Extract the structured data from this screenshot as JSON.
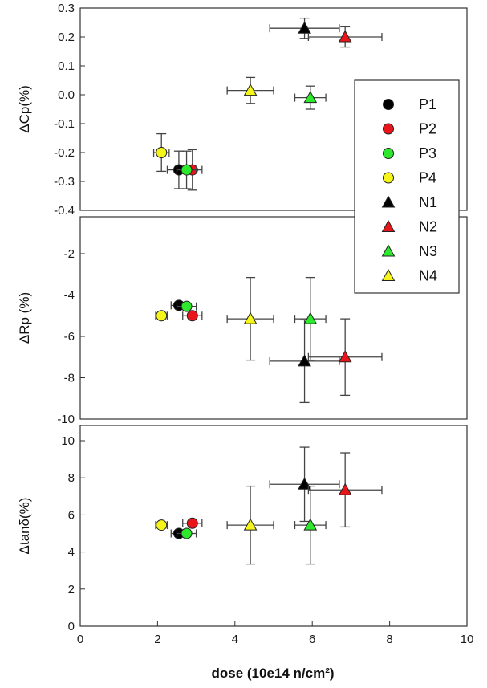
{
  "chart_data": {
    "type": "scatter",
    "xlabel": "dose (10e14 n/cm²)",
    "xlim": [
      0,
      10
    ],
    "xticks": [
      "0",
      "2",
      "4",
      "6",
      "8",
      "10"
    ],
    "legend": {
      "placement": "right",
      "entries": [
        {
          "name": "P1",
          "marker": "circle",
          "color": "#000000"
        },
        {
          "name": "P2",
          "marker": "circle",
          "color": "#e8151b"
        },
        {
          "name": "P3",
          "marker": "circle",
          "color": "#2ee82e"
        },
        {
          "name": "P4",
          "marker": "circle",
          "color": "#f5f51a"
        },
        {
          "name": "N1",
          "marker": "triangle",
          "color": "#000000"
        },
        {
          "name": "N2",
          "marker": "triangle",
          "color": "#e8151b"
        },
        {
          "name": "N3",
          "marker": "triangle",
          "color": "#2ee82e"
        },
        {
          "name": "N4",
          "marker": "triangle",
          "color": "#f5f51a"
        }
      ]
    },
    "panels": [
      {
        "ylabel": "ΔCp(%)",
        "ylim": [
          -0.4,
          0.3
        ],
        "yticks": [
          "0.3",
          "0.2",
          "0.1",
          "0.0",
          "-0.1",
          "-0.2",
          "-0.3",
          "-0.4"
        ],
        "points": [
          {
            "name": "P1",
            "x": 2.55,
            "y": -0.26,
            "xerr": 0.3,
            "yerr": 0.065
          },
          {
            "name": "P2",
            "x": 2.9,
            "y": -0.26,
            "xerr": 0.25,
            "yerr": 0.07
          },
          {
            "name": "P3",
            "x": 2.75,
            "y": -0.26,
            "xerr": 0.25,
            "yerr": 0.065
          },
          {
            "name": "P4",
            "x": 2.1,
            "y": -0.2,
            "xerr": 0.2,
            "yerr": 0.065
          },
          {
            "name": "N1",
            "x": 5.8,
            "y": 0.23,
            "xerr": 0.9,
            "yerr": 0.035
          },
          {
            "name": "N2",
            "x": 6.85,
            "y": 0.2,
            "xerr": 0.95,
            "yerr": 0.035
          },
          {
            "name": "N3",
            "x": 5.95,
            "y": -0.01,
            "xerr": 0.4,
            "yerr": 0.04
          },
          {
            "name": "N4",
            "x": 4.4,
            "y": 0.015,
            "xerr": 0.6,
            "yerr": 0.045
          }
        ]
      },
      {
        "ylabel": "ΔRp (%)",
        "ylim": [
          -10,
          0
        ],
        "yticks": [
          "-2",
          "-4",
          "-6",
          "-8",
          "-10"
        ],
        "points": [
          {
            "name": "P1",
            "x": 2.55,
            "y": -4.5,
            "xerr": 0.2,
            "yerr": 0
          },
          {
            "name": "P2",
            "x": 2.9,
            "y": -5.0,
            "xerr": 0.25,
            "yerr": 0
          },
          {
            "name": "P3",
            "x": 2.75,
            "y": -4.55,
            "xerr": 0.25,
            "yerr": 0
          },
          {
            "name": "P4",
            "x": 2.1,
            "y": -5.0,
            "xerr": 0.15,
            "yerr": 0
          },
          {
            "name": "N1",
            "x": 5.8,
            "y": -7.2,
            "xerr": 0.9,
            "yerr": 2.0
          },
          {
            "name": "N2",
            "x": 6.85,
            "y": -7.0,
            "xerr": 0.95,
            "yerr": 1.85
          },
          {
            "name": "N3",
            "x": 5.95,
            "y": -5.15,
            "xerr": 0.4,
            "yerr": 2.0
          },
          {
            "name": "N4",
            "x": 4.4,
            "y": -5.15,
            "xerr": 0.6,
            "yerr": 2.0
          }
        ]
      },
      {
        "ylabel": "Δtanδ(%)",
        "ylim": [
          0,
          11
        ],
        "yticks": [
          "10",
          "8",
          "6",
          "4",
          "2",
          "0"
        ],
        "points": [
          {
            "name": "P1",
            "x": 2.55,
            "y": 5.0,
            "xerr": 0.2,
            "yerr": 0
          },
          {
            "name": "P2",
            "x": 2.9,
            "y": 5.55,
            "xerr": 0.25,
            "yerr": 0
          },
          {
            "name": "P3",
            "x": 2.75,
            "y": 5.0,
            "xerr": 0.25,
            "yerr": 0
          },
          {
            "name": "P4",
            "x": 2.1,
            "y": 5.45,
            "xerr": 0.15,
            "yerr": 0
          },
          {
            "name": "N1",
            "x": 5.8,
            "y": 7.65,
            "xerr": 0.9,
            "yerr": 2.0
          },
          {
            "name": "N2",
            "x": 6.85,
            "y": 7.35,
            "xerr": 0.95,
            "yerr": 2.0
          },
          {
            "name": "N3",
            "x": 5.95,
            "y": 5.45,
            "xerr": 0.4,
            "yerr": 2.1
          },
          {
            "name": "N4",
            "x": 4.4,
            "y": 5.45,
            "xerr": 0.6,
            "yerr": 2.1
          }
        ]
      }
    ]
  }
}
